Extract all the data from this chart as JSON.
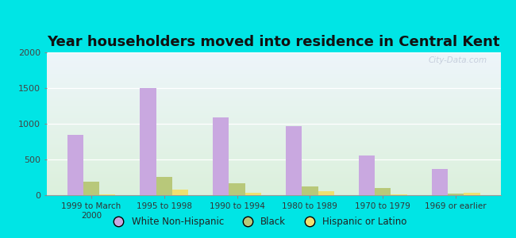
{
  "title": "Year householders moved into residence in Central Kent",
  "categories": [
    "1999 to March\n2000",
    "1995 to 1998",
    "1990 to 1994",
    "1980 to 1989",
    "1970 to 1979",
    "1969 or earlier"
  ],
  "white": [
    850,
    1500,
    1090,
    970,
    560,
    370
  ],
  "black": [
    190,
    260,
    165,
    125,
    100,
    20
  ],
  "hispanic": [
    10,
    75,
    35,
    55,
    10,
    35
  ],
  "white_color": "#c9a8e0",
  "black_color": "#b8c87a",
  "hispanic_color": "#f0e070",
  "ylim": [
    0,
    2000
  ],
  "yticks": [
    0,
    500,
    1000,
    1500,
    2000
  ],
  "background_outer": "#00e5e5",
  "watermark": "City-Data.com",
  "bar_width": 0.22,
  "legend_labels": [
    "White Non-Hispanic",
    "Black",
    "Hispanic or Latino"
  ],
  "title_fontsize": 13
}
